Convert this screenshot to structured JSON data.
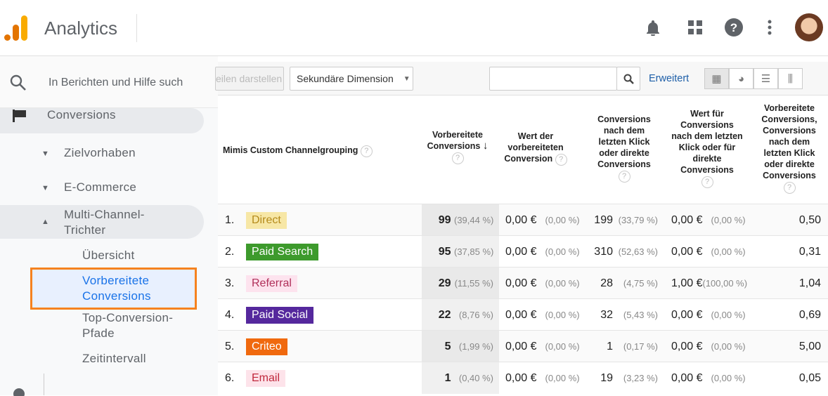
{
  "header": {
    "title": "Analytics",
    "icons": [
      "bell-icon",
      "apps-grid-icon",
      "help-icon",
      "more-vert-icon"
    ]
  },
  "sidebar": {
    "search_placeholder": "In Berichten und Hilfe such",
    "items": {
      "conversions": "Conversions",
      "zielvorhaben": "Zielvorhaben",
      "ecommerce": "E-Commerce",
      "mcf": "Multi-Channel-Trichter",
      "overview": "Übersicht",
      "assisted": "Vorbereitete Conversions",
      "top_paths": "Top-Conversion-Pfade",
      "time_lag": "Zeitintervall"
    }
  },
  "toolbar": {
    "plot_rows": "eilen darstellen",
    "secondary_dimension": "Sekundäre Dimension",
    "advanced": "Erweitert"
  },
  "table": {
    "headers": [
      "Mimis Custom Channelgrouping",
      "Vorbereitete Conversions",
      "Wert der vorbereiteten Conversion",
      "Conversions nach dem letzten Klick oder direkte Conversions",
      "Wert für Conversions nach dem letzten Klick oder für direkte Conversions",
      "Vorbereitete Conversions, Conversions nach dem letzten Klick oder direkte Conversions"
    ],
    "rows": [
      {
        "rank": "1.",
        "channel": "Direct",
        "bg": "#f7e7a6",
        "fg": "#b58b1c",
        "ac": "99",
        "ac_pct": "(39,44 %)",
        "acv": "0,00 €",
        "acv_pct": "(0,00 %)",
        "lc": "199",
        "lc_pct": "(33,79 %)",
        "lcv": "0,00 €",
        "lcv_pct": "(0,00 %)",
        "ratio": "0,50"
      },
      {
        "rank": "2.",
        "channel": "Paid Search",
        "bg": "#3d9a2c",
        "fg": "#ffffff",
        "ac": "95",
        "ac_pct": "(37,85 %)",
        "acv": "0,00 €",
        "acv_pct": "(0,00 %)",
        "lc": "310",
        "lc_pct": "(52,63 %)",
        "lcv": "0,00 €",
        "lcv_pct": "(0,00 %)",
        "ratio": "0,31"
      },
      {
        "rank": "3.",
        "channel": "Referral",
        "bg": "#fde3ee",
        "fg": "#b0305a",
        "ac": "29",
        "ac_pct": "(11,55 %)",
        "acv": "0,00 €",
        "acv_pct": "(0,00 %)",
        "lc": "28",
        "lc_pct": "(4,75 %)",
        "lcv": "1,00 €",
        "lcv_pct": "(100,00 %)",
        "ratio": "1,04"
      },
      {
        "rank": "4.",
        "channel": "Paid Social",
        "bg": "#55289d",
        "fg": "#ffffff",
        "ac": "22",
        "ac_pct": "(8,76 %)",
        "acv": "0,00 €",
        "acv_pct": "(0,00 %)",
        "lc": "32",
        "lc_pct": "(5,43 %)",
        "lcv": "0,00 €",
        "lcv_pct": "(0,00 %)",
        "ratio": "0,69"
      },
      {
        "rank": "5.",
        "channel": "Criteo",
        "bg": "#f0690e",
        "fg": "#ffffff",
        "ac": "5",
        "ac_pct": "(1,99 %)",
        "acv": "0,00 €",
        "acv_pct": "(0,00 %)",
        "lc": "1",
        "lc_pct": "(0,17 %)",
        "lcv": "0,00 €",
        "lcv_pct": "(0,00 %)",
        "ratio": "5,00"
      },
      {
        "rank": "6.",
        "channel": "Email",
        "bg": "#fde3ea",
        "fg": "#c0283c",
        "ac": "1",
        "ac_pct": "(0,40 %)",
        "acv": "0,00 €",
        "acv_pct": "(0,00 %)",
        "lc": "19",
        "lc_pct": "(3,23 %)",
        "lcv": "0,00 €",
        "lcv_pct": "(0,00 %)",
        "ratio": "0,05"
      }
    ]
  }
}
